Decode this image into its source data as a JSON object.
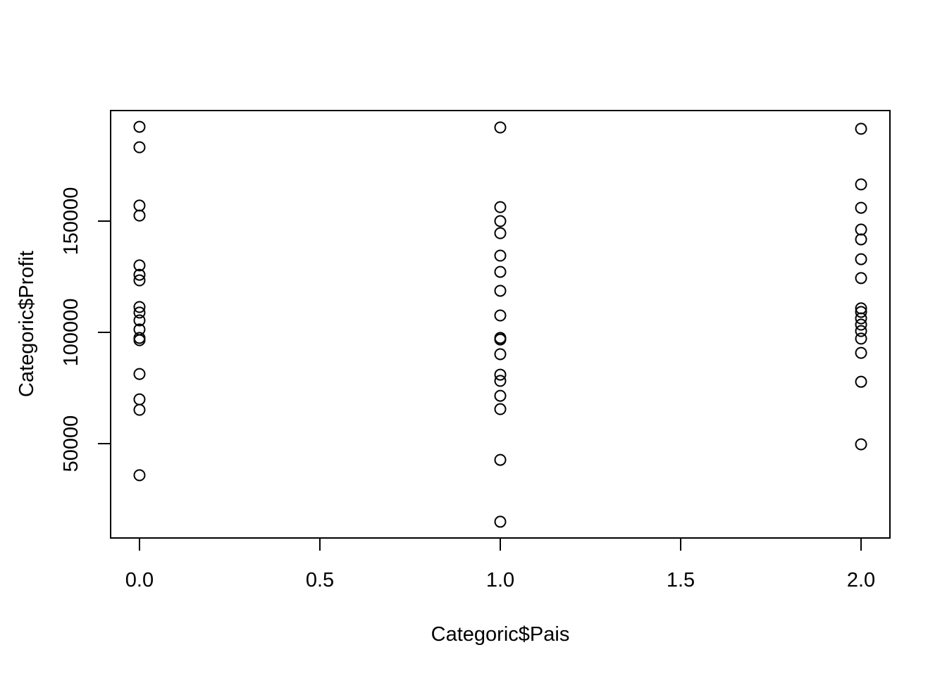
{
  "chart_data": {
    "type": "scatter",
    "xlabel": "Categoric$Pais",
    "ylabel": "Categoric$Profit",
    "x": [
      0,
      0,
      0,
      0,
      0,
      0,
      0,
      0,
      0,
      0,
      0,
      0,
      0,
      0,
      0,
      0,
      0,
      1,
      1,
      1,
      1,
      1,
      1,
      1,
      1,
      1,
      1,
      1,
      1,
      1,
      1,
      1,
      1,
      1,
      2,
      2,
      2,
      2,
      2,
      2,
      2,
      2,
      2,
      2,
      2,
      2,
      2,
      2,
      2,
      2
    ],
    "y": [
      192400,
      183200,
      157000,
      152500,
      130100,
      125900,
      123400,
      111400,
      108900,
      105400,
      101300,
      97500,
      96500,
      81300,
      69900,
      65200,
      35800,
      192100,
      156300,
      150000,
      144600,
      134500,
      127200,
      118700,
      107600,
      97500,
      96800,
      90200,
      81000,
      78200,
      71500,
      65500,
      42700,
      14900,
      191500,
      166500,
      156000,
      146200,
      141800,
      132900,
      124400,
      110800,
      109200,
      106300,
      103500,
      100600,
      97200,
      90800,
      77800,
      49700
    ],
    "color": "#000000",
    "xlim": [
      -0.08,
      2.08
    ],
    "ylim": [
      7600,
      199700
    ],
    "xticks": [
      {
        "value": 0,
        "label": "0.0"
      },
      {
        "value": 0.5,
        "label": "0.5"
      },
      {
        "value": 1,
        "label": "1.0"
      },
      {
        "value": 1.5,
        "label": "1.5"
      },
      {
        "value": 2,
        "label": "2.0"
      }
    ],
    "yticks": [
      50000,
      100000,
      150000
    ]
  }
}
